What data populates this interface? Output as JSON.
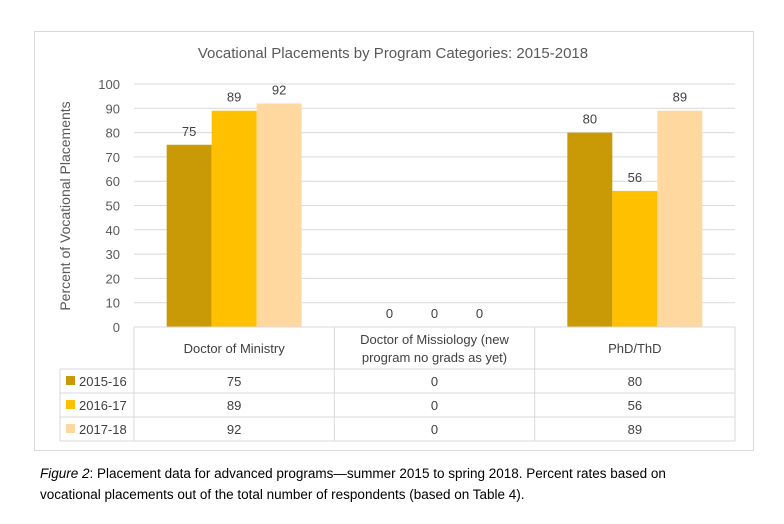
{
  "chart_data": {
    "type": "bar",
    "title": "Vocational Placements by Program Categories: 2015-2018",
    "xlabel": "",
    "ylabel": "Percent of Vocational Placements",
    "ylim": [
      0,
      100
    ],
    "yticks": [
      0,
      10,
      20,
      30,
      40,
      50,
      60,
      70,
      80,
      90,
      100
    ],
    "grid": true,
    "legend_placement": "data-table",
    "categories": [
      "Doctor of Ministry",
      "Doctor of Missiology (new program no grads as yet)",
      "PhD/ThD"
    ],
    "category_lines": [
      [
        "Doctor of Ministry"
      ],
      [
        "Doctor of Missiology (new",
        "program no grads as yet)"
      ],
      [
        "PhD/ThD"
      ]
    ],
    "series": [
      {
        "name": "2015-16",
        "color": "#C99A06",
        "values": [
          75,
          0,
          80
        ]
      },
      {
        "name": "2016-17",
        "color": "#FFC000",
        "values": [
          89,
          0,
          56
        ]
      },
      {
        "name": "2017-18",
        "color": "#FFD8A0",
        "values": [
          92,
          0,
          89
        ]
      }
    ]
  },
  "caption": {
    "label": "Figure 2",
    "line1": ": Placement data for advanced programs—summer 2015 to spring 2018. Percent rates based on",
    "line2": "vocational placements out of the total number of respondents (based on Table 4)."
  }
}
